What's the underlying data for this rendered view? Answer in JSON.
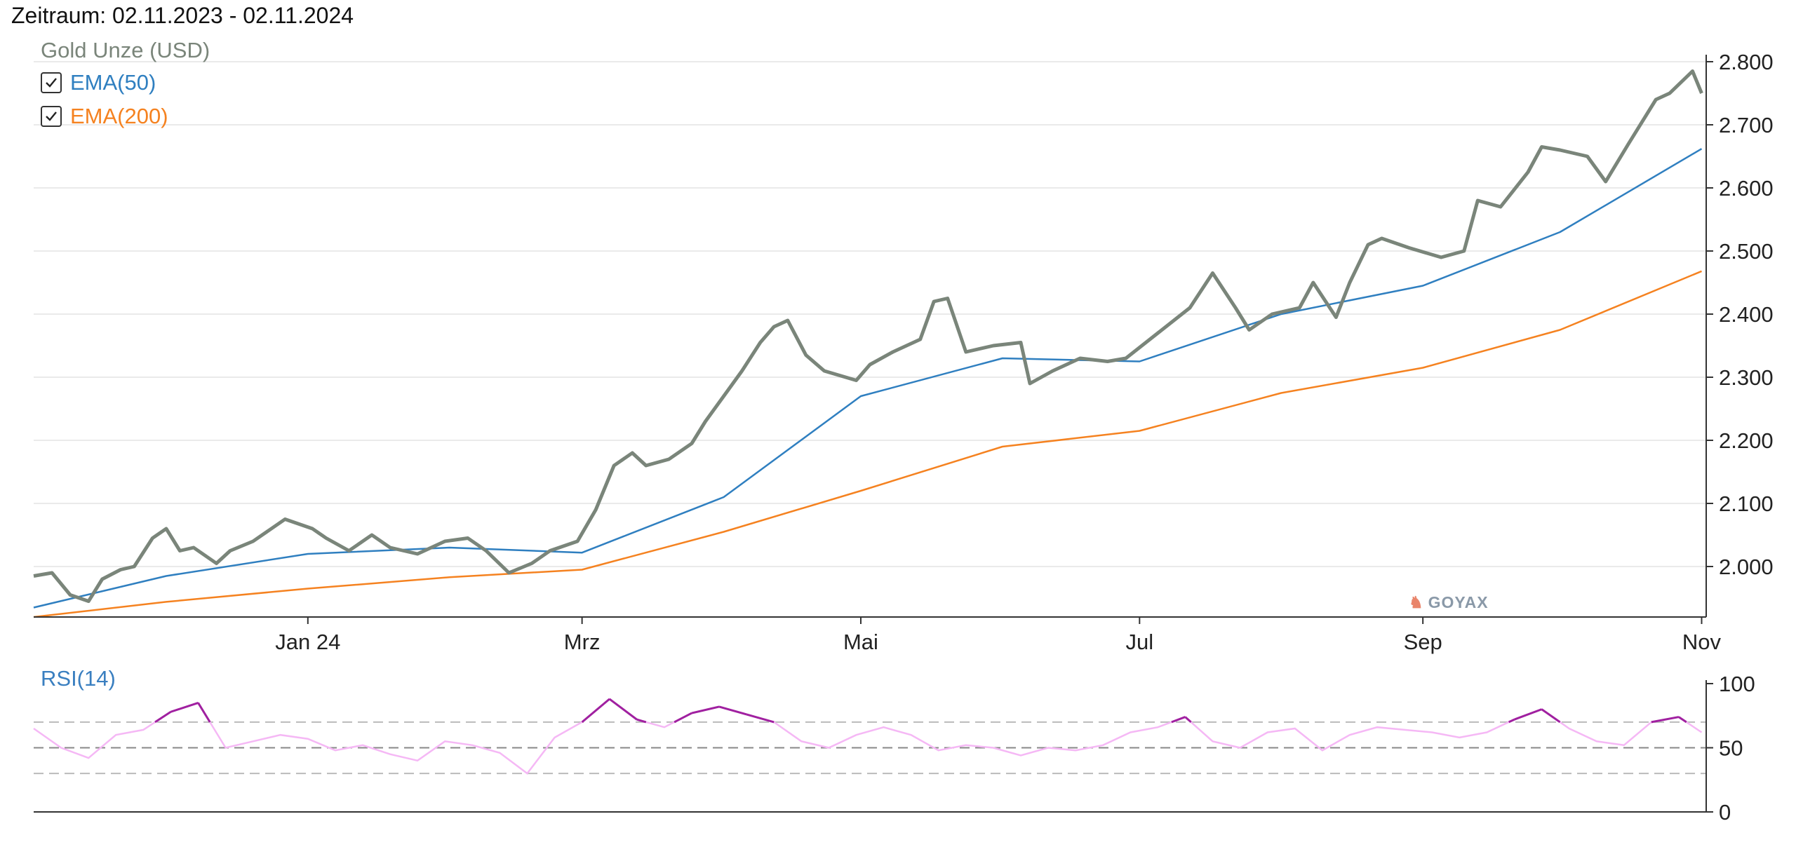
{
  "period_label": "Zeitraum: 02.11.2023 - 02.11.2024",
  "legend": {
    "title": "Gold Unze (USD)",
    "items": [
      {
        "label": "EMA(50)",
        "checked": true,
        "color": "#2f7fc0"
      },
      {
        "label": "EMA(200)",
        "checked": true,
        "color": "#f58220"
      }
    ]
  },
  "watermark": "GOYAX",
  "rsi_title": "RSI(14)",
  "colors": {
    "price": "#7a857a",
    "ema50": "#2f7fc0",
    "ema200": "#f58220",
    "rsi_normal": "#f5b8f5",
    "rsi_overbought": "#a020a0",
    "grid": "#e4e4e4",
    "axis": "#333333",
    "dashed": "#bbbbbb"
  },
  "chart_data": [
    {
      "type": "line",
      "title": "Gold Unze (USD)",
      "x_tick_labels": [
        "Jan 24",
        "Mrz",
        "Mai",
        "Jul",
        "Sep",
        "Nov"
      ],
      "x_tick_dates": [
        "2024-01-01",
        "2024-03-01",
        "2024-05-01",
        "2024-07-01",
        "2024-09-01",
        "2024-11-01"
      ],
      "xlim": [
        "2023-11-02",
        "2024-11-02"
      ],
      "y_ticks": [
        2000,
        2100,
        2200,
        2300,
        2400,
        2500,
        2600,
        2700,
        2800
      ],
      "y_tick_labels": [
        "2.000",
        "2.100",
        "2.200",
        "2.300",
        "2.400",
        "2.500",
        "2.600",
        "2.700",
        "2.800"
      ],
      "ylim": [
        1920,
        2800
      ],
      "y_axis_side": "right",
      "grid": true,
      "legend_position": "top-left",
      "series": [
        {
          "name": "Gold Unze (USD)",
          "x": [
            "2023-11-02",
            "2023-11-06",
            "2023-11-10",
            "2023-11-14",
            "2023-11-17",
            "2023-11-21",
            "2023-11-24",
            "2023-11-28",
            "2023-12-01",
            "2023-12-04",
            "2023-12-07",
            "2023-12-12",
            "2023-12-15",
            "2023-12-20",
            "2023-12-27",
            "2024-01-02",
            "2024-01-05",
            "2024-01-10",
            "2024-01-15",
            "2024-01-19",
            "2024-01-25",
            "2024-01-31",
            "2024-02-05",
            "2024-02-09",
            "2024-02-14",
            "2024-02-19",
            "2024-02-23",
            "2024-02-29",
            "2024-03-04",
            "2024-03-08",
            "2024-03-12",
            "2024-03-15",
            "2024-03-20",
            "2024-03-25",
            "2024-03-28",
            "2024-04-02",
            "2024-04-05",
            "2024-04-09",
            "2024-04-12",
            "2024-04-15",
            "2024-04-19",
            "2024-04-23",
            "2024-04-30",
            "2024-05-03",
            "2024-05-08",
            "2024-05-14",
            "2024-05-17",
            "2024-05-20",
            "2024-05-24",
            "2024-05-30",
            "2024-06-05",
            "2024-06-07",
            "2024-06-12",
            "2024-06-18",
            "2024-06-24",
            "2024-06-28",
            "2024-07-05",
            "2024-07-12",
            "2024-07-17",
            "2024-07-22",
            "2024-07-25",
            "2024-07-30",
            "2024-08-05",
            "2024-08-08",
            "2024-08-13",
            "2024-08-16",
            "2024-08-20",
            "2024-08-23",
            "2024-08-29",
            "2024-09-05",
            "2024-09-10",
            "2024-09-13",
            "2024-09-18",
            "2024-09-24",
            "2024-09-27",
            "2024-10-01",
            "2024-10-07",
            "2024-10-11",
            "2024-10-16",
            "2024-10-22",
            "2024-10-25",
            "2024-10-30",
            "2024-11-01"
          ],
          "values": [
            1985,
            1990,
            1955,
            1945,
            1980,
            1995,
            2000,
            2045,
            2060,
            2025,
            2030,
            2005,
            2025,
            2040,
            2075,
            2060,
            2045,
            2025,
            2050,
            2030,
            2020,
            2040,
            2045,
            2025,
            1990,
            2005,
            2025,
            2040,
            2090,
            2160,
            2180,
            2160,
            2170,
            2195,
            2230,
            2280,
            2310,
            2355,
            2380,
            2390,
            2335,
            2310,
            2295,
            2320,
            2340,
            2360,
            2420,
            2425,
            2340,
            2350,
            2355,
            2290,
            2310,
            2330,
            2325,
            2330,
            2370,
            2410,
            2465,
            2410,
            2375,
            2400,
            2410,
            2450,
            2395,
            2450,
            2510,
            2520,
            2505,
            2490,
            2500,
            2580,
            2570,
            2625,
            2665,
            2660,
            2650,
            2610,
            2670,
            2740,
            2750,
            2785,
            2750
          ]
        },
        {
          "name": "EMA(50)",
          "x": [
            "2023-11-02",
            "2023-12-01",
            "2024-01-01",
            "2024-02-01",
            "2024-03-01",
            "2024-04-01",
            "2024-05-01",
            "2024-06-01",
            "2024-07-01",
            "2024-08-01",
            "2024-09-01",
            "2024-10-01",
            "2024-11-01"
          ],
          "values": [
            1935,
            1985,
            2020,
            2030,
            2022,
            2110,
            2270,
            2330,
            2325,
            2400,
            2445,
            2530,
            2662
          ]
        },
        {
          "name": "EMA(200)",
          "x": [
            "2023-11-02",
            "2023-12-01",
            "2024-01-01",
            "2024-02-01",
            "2024-03-01",
            "2024-04-01",
            "2024-05-01",
            "2024-06-01",
            "2024-07-01",
            "2024-08-01",
            "2024-09-01",
            "2024-10-01",
            "2024-11-01"
          ],
          "values": [
            1920,
            1944,
            1965,
            1983,
            1995,
            2055,
            2120,
            2190,
            2215,
            2275,
            2315,
            2375,
            2468
          ]
        }
      ]
    },
    {
      "type": "line",
      "title": "RSI(14)",
      "x_tick_labels": [],
      "ylim": [
        0,
        100
      ],
      "y_ticks": [
        0,
        50,
        100
      ],
      "y_tick_labels": [
        "0",
        "50",
        "100"
      ],
      "y_axis_side": "right",
      "reference_lines": [
        30,
        50,
        70
      ],
      "overbought_level": 70,
      "series": [
        {
          "name": "RSI(14)",
          "x": [
            "2023-11-02",
            "2023-11-08",
            "2023-11-14",
            "2023-11-20",
            "2023-11-26",
            "2023-12-02",
            "2023-12-08",
            "2023-12-14",
            "2023-12-20",
            "2023-12-26",
            "2024-01-01",
            "2024-01-07",
            "2024-01-13",
            "2024-01-19",
            "2024-01-25",
            "2024-01-31",
            "2024-02-06",
            "2024-02-12",
            "2024-02-18",
            "2024-02-24",
            "2024-03-01",
            "2024-03-07",
            "2024-03-13",
            "2024-03-19",
            "2024-03-25",
            "2024-03-31",
            "2024-04-06",
            "2024-04-12",
            "2024-04-18",
            "2024-04-24",
            "2024-04-30",
            "2024-05-06",
            "2024-05-12",
            "2024-05-18",
            "2024-05-24",
            "2024-05-30",
            "2024-06-05",
            "2024-06-11",
            "2024-06-17",
            "2024-06-23",
            "2024-06-29",
            "2024-07-05",
            "2024-07-11",
            "2024-07-17",
            "2024-07-23",
            "2024-07-29",
            "2024-08-04",
            "2024-08-10",
            "2024-08-16",
            "2024-08-22",
            "2024-08-28",
            "2024-09-03",
            "2024-09-09",
            "2024-09-15",
            "2024-09-21",
            "2024-09-27",
            "2024-10-03",
            "2024-10-09",
            "2024-10-15",
            "2024-10-21",
            "2024-10-27",
            "2024-11-01"
          ],
          "values": [
            65,
            50,
            42,
            60,
            64,
            78,
            85,
            50,
            55,
            60,
            57,
            48,
            52,
            45,
            40,
            55,
            52,
            46,
            30,
            58,
            70,
            88,
            72,
            66,
            77,
            82,
            76,
            70,
            55,
            50,
            60,
            66,
            60,
            48,
            52,
            50,
            44,
            50,
            48,
            52,
            62,
            66,
            74,
            55,
            50,
            62,
            65,
            48,
            60,
            66,
            64,
            62,
            58,
            62,
            72,
            80,
            65,
            55,
            52,
            70,
            74,
            62
          ]
        }
      ]
    }
  ]
}
